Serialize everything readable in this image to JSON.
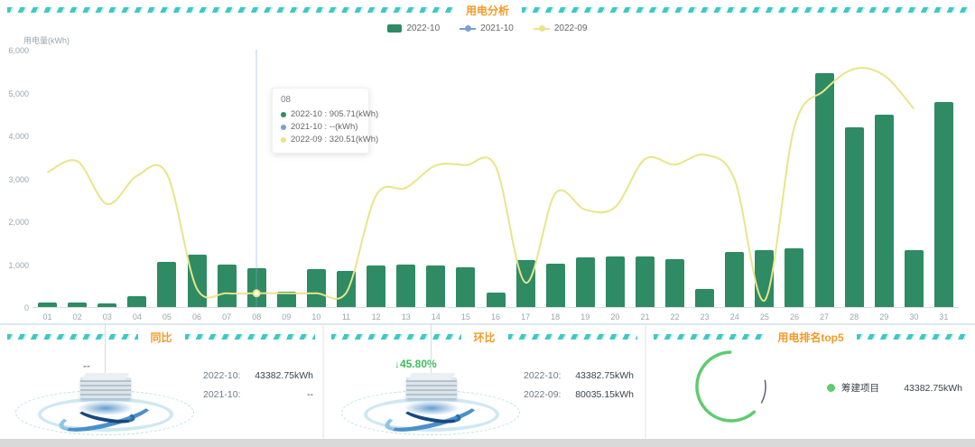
{
  "header": {
    "title": "用电分析"
  },
  "colors": {
    "bar": "#2e8b64",
    "line_prev_year": "#7b9fd4",
    "line_prev_month": "#e9e48a",
    "title_accent": "#f59a23",
    "dash_teal": "#3fc8c4",
    "mom_green": "#3dbd5d",
    "ring_green": "#5ecb71",
    "ring_gray": "#5a626b"
  },
  "legend": [
    {
      "label": "2022-10",
      "type": "bar",
      "color": "#2e8b64"
    },
    {
      "label": "2021-10",
      "type": "line",
      "color": "#7b9fd4"
    },
    {
      "label": "2022-09",
      "type": "line",
      "color": "#e9e48a"
    }
  ],
  "chart_data": [
    {
      "type": "bar",
      "title": "用电分析",
      "ylabel": "用电量(kWh)",
      "ylim": [
        0,
        6000
      ],
      "yticks": [
        "0",
        "1,000",
        "2,000",
        "3,000",
        "4,000",
        "5,000",
        "6,000"
      ],
      "grid": false,
      "legend_position": "top",
      "categories": [
        "01",
        "02",
        "03",
        "04",
        "05",
        "06",
        "07",
        "08",
        "09",
        "10",
        "11",
        "12",
        "13",
        "14",
        "15",
        "16",
        "17",
        "18",
        "19",
        "20",
        "21",
        "22",
        "23",
        "24",
        "25",
        "26",
        "27",
        "28",
        "29",
        "30",
        "31"
      ],
      "series": [
        {
          "name": "2022-10",
          "type": "bar",
          "color": "#2e8b64",
          "values": [
            110,
            100,
            90,
            260,
            1050,
            1230,
            1000,
            905.71,
            360,
            890,
            850,
            975,
            985,
            975,
            930,
            330,
            1100,
            1020,
            1150,
            1170,
            1180,
            1120,
            430,
            1290,
            1330,
            1370,
            5450,
            4200,
            4480,
            1330,
            4780
          ]
        },
        {
          "name": "2021-10",
          "type": "line",
          "color": "#7b9fd4",
          "values": [
            null,
            null,
            null,
            null,
            null,
            null,
            null,
            null,
            null,
            null,
            null,
            null,
            null,
            null,
            null,
            null,
            null,
            null,
            null,
            null,
            null,
            null,
            null,
            null,
            null,
            null,
            null,
            null,
            null,
            null,
            null
          ]
        },
        {
          "name": "2022-09",
          "type": "line",
          "color": "#e9e48a",
          "values": [
            3140,
            3400,
            2400,
            3060,
            3100,
            430,
            320,
            320.51,
            320,
            320,
            330,
            2600,
            2780,
            3300,
            3310,
            3280,
            570,
            2650,
            2270,
            2330,
            3450,
            3320,
            3550,
            2970,
            150,
            4200,
            5050,
            5550,
            5400,
            4620,
            null
          ]
        }
      ],
      "highlight": {
        "category_index": 7,
        "series": "2022-09"
      }
    },
    {
      "type": "pie",
      "title": "用电排名top5",
      "segments": [
        {
          "label": "筹建项目",
          "value": "43382.75kWh",
          "color": "#5ecb71",
          "start_deg": 138,
          "sweep_deg": 220
        },
        {
          "color": "#5a626b",
          "start_deg": 80,
          "sweep_deg": 38
        }
      ]
    }
  ],
  "tooltip": {
    "title": "08",
    "rows": [
      {
        "series": "2022-10",
        "value": "905.71(kWh)",
        "color": "#2e8b64"
      },
      {
        "series": "2021-10",
        "value": "--(kWh)",
        "color": "#7b9fd4"
      },
      {
        "series": "2022-09",
        "value": "320.51(kWh)",
        "color": "#e9e48a"
      }
    ]
  },
  "panels": {
    "yoy": {
      "title": "同比",
      "badge": "--",
      "badge_color": "#8a9299",
      "rows": [
        {
          "label": "2022-10:",
          "value": "43382.75kWh"
        },
        {
          "label": "2021-10:",
          "value": "--"
        }
      ]
    },
    "mom": {
      "title": "环比",
      "badge": "↓45.80%",
      "badge_color": "#3dbd5d",
      "rows": [
        {
          "label": "2022-10:",
          "value": "43382.75kWh"
        },
        {
          "label": "2022-09:",
          "value": "80035.15kWh"
        }
      ]
    },
    "rank": {
      "title": "用电排名top5",
      "legend": {
        "label": "筹建项目",
        "value": "43382.75kWh",
        "color": "#5ecb71"
      }
    }
  }
}
